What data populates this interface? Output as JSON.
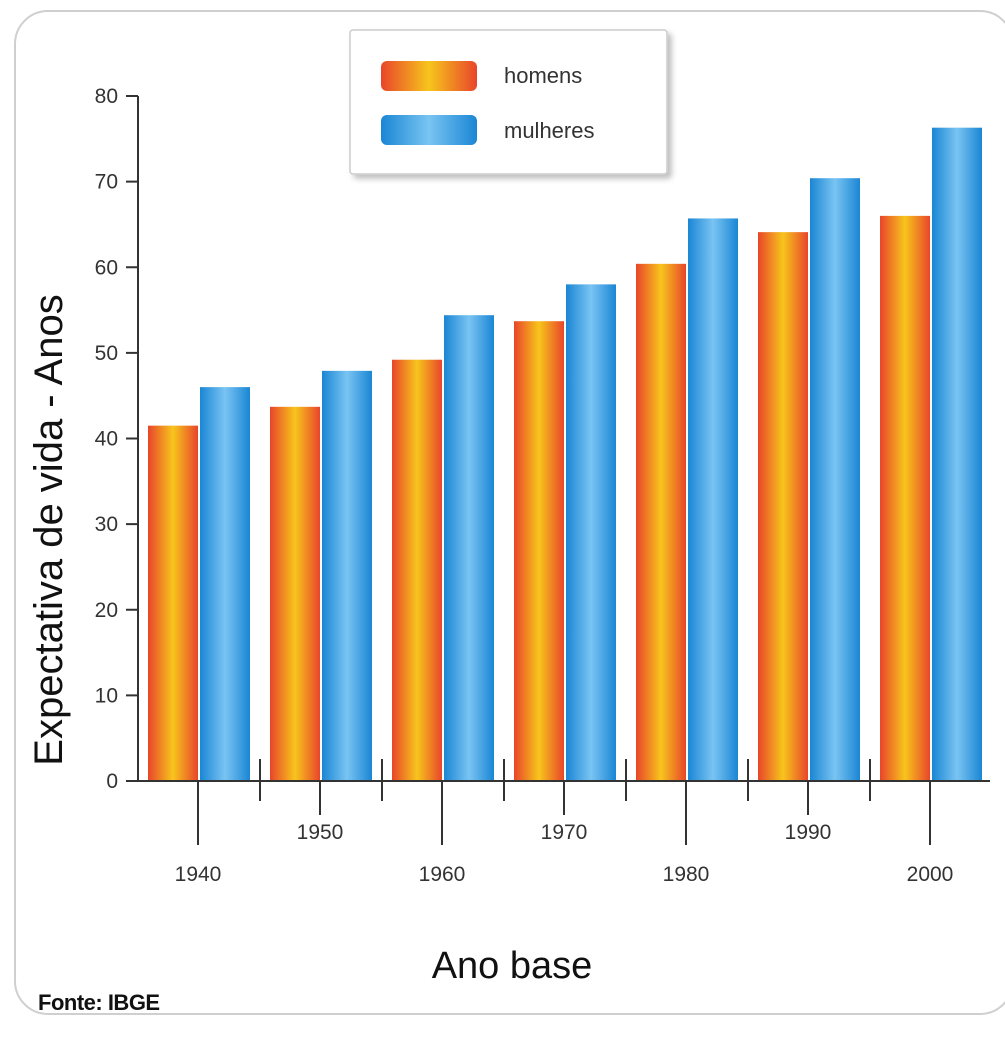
{
  "chart_data": {
    "type": "bar",
    "categories": [
      "1940",
      "1950",
      "1960",
      "1970",
      "1980",
      "1990",
      "2000"
    ],
    "series": [
      {
        "name": "homens",
        "values": [
          41.5,
          43.7,
          49.2,
          53.7,
          60.4,
          64.1,
          66.0
        ]
      },
      {
        "name": "mulheres",
        "values": [
          46.0,
          47.9,
          54.4,
          58.0,
          65.7,
          70.4,
          76.3
        ]
      }
    ],
    "xlabel": "Ano base",
    "ylabel": "Expectativa de vida - Anos",
    "ylim": [
      0,
      80
    ],
    "yticks": [
      0,
      10,
      20,
      30,
      40,
      50,
      60,
      70,
      80
    ],
    "legend_position": "top-center",
    "grid": false,
    "colors": {
      "homens_edge": "#e8452a",
      "homens_center": "#f7c51c",
      "mulheres_edge": "#1a86d4",
      "mulheres_center": "#79c4f2"
    }
  },
  "source": "Fonte: IBGE"
}
